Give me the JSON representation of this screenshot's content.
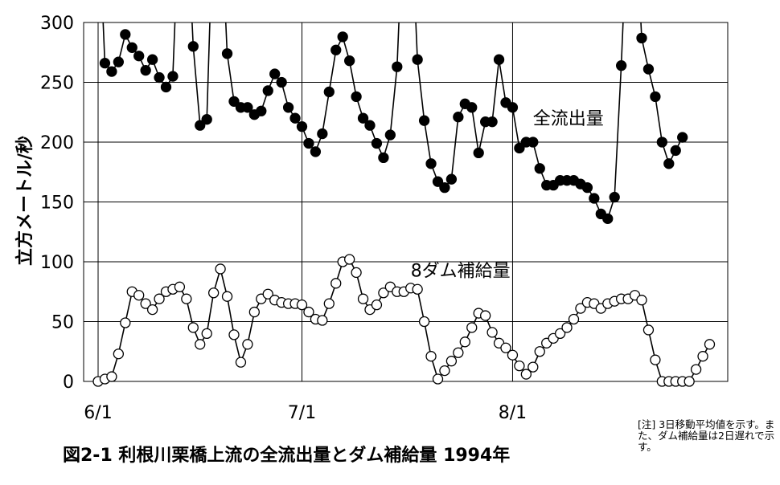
{
  "chart_data": {
    "type": "line",
    "title": "図2-1  利根川栗橋上流の全流出量とダム補給量  1994年",
    "ylabel": "立方メートル/秒",
    "xlabel": "",
    "ylim": [
      0,
      300
    ],
    "yticks": [
      0,
      50,
      100,
      150,
      200,
      250,
      300
    ],
    "x_tick_labels": [
      {
        "label": "6/1",
        "day": 0
      },
      {
        "label": "7/1",
        "day": 30
      },
      {
        "label": "8/1",
        "day": 61
      }
    ],
    "grid": true,
    "legend": "direct-labels",
    "note": "[注] 3日移動平均値を示す。また、ダム補給量は2日遅れで示す。",
    "series": [
      {
        "name": "全流出量",
        "marker": "filled-circle",
        "color": "#000000",
        "label_at_day": 64,
        "label_at_value": 220,
        "values": [
          400,
          266,
          259,
          267,
          290,
          279,
          272,
          260,
          269,
          254,
          246,
          255,
          400,
          400,
          280,
          214,
          219,
          400,
          400,
          274,
          234,
          229,
          229,
          223,
          226,
          243,
          257,
          250,
          229,
          220,
          213,
          199,
          192,
          207,
          242,
          277,
          288,
          268,
          238,
          220,
          214,
          199,
          187,
          206,
          263,
          400,
          400,
          269,
          218,
          182,
          167,
          162,
          169,
          221,
          232,
          229,
          191,
          217,
          217,
          269,
          233,
          229,
          195,
          200,
          200,
          178,
          164,
          164,
          168,
          168,
          168,
          165,
          162,
          153,
          140,
          136,
          154,
          264,
          400,
          400,
          287,
          261,
          238,
          200,
          182,
          193,
          204
        ]
      },
      {
        "name": "8ダム補給量",
        "marker": "open-circle",
        "color": "#000000",
        "label_at_day": 46,
        "label_at_value": 93,
        "values": [
          0,
          2,
          4,
          23,
          49,
          75,
          72,
          65,
          60,
          69,
          75,
          77,
          79,
          69,
          45,
          31,
          40,
          74,
          94,
          71,
          39,
          16,
          31,
          58,
          69,
          73,
          68,
          66,
          65,
          65,
          64,
          58,
          52,
          51,
          65,
          82,
          100,
          102,
          91,
          69,
          60,
          64,
          74,
          79,
          75,
          75,
          78,
          77,
          50,
          21,
          2,
          9,
          17,
          24,
          33,
          45,
          57,
          55,
          41,
          32,
          28,
          22,
          13,
          6,
          12,
          25,
          32,
          36,
          40,
          45,
          52,
          61,
          66,
          65,
          61,
          65,
          67,
          69,
          69,
          72,
          68,
          43,
          18,
          0,
          0,
          0,
          0,
          0,
          10,
          21,
          31
        ]
      }
    ]
  }
}
